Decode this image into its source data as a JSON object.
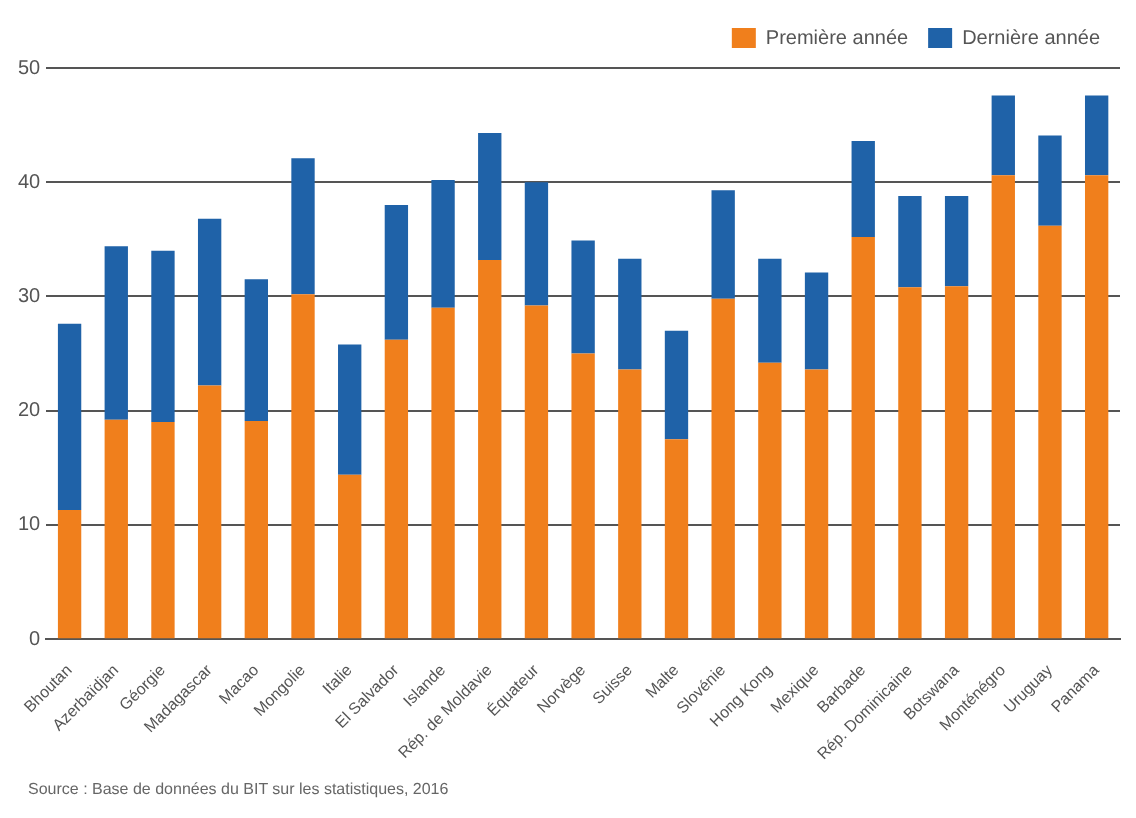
{
  "chart_data": {
    "type": "bar",
    "stacked": true,
    "categories": [
      "Bhoutan",
      "Azerbaïdjan",
      "Géorgie",
      "Madagascar",
      "Macao",
      "Mongolie",
      "Italie",
      "El Salvador",
      "Islande",
      "Rép. de Moldavie",
      "Équateur",
      "Norvège",
      "Suisse",
      "Malte",
      "Slovénie",
      "Hong Kong",
      "Mexique",
      "Barbade",
      "Rép. Dominicaine",
      "Botswana",
      "Monténégro",
      "Uruguay",
      "Panama"
    ],
    "series": [
      {
        "name": "Première année",
        "color": "#f07f1c",
        "values": [
          11.3,
          19.2,
          19,
          22.2,
          19.1,
          30.2,
          14.4,
          26.2,
          29,
          33.2,
          29.2,
          25,
          23.6,
          17.5,
          29.8,
          24.2,
          23.6,
          35.2,
          30.8,
          30.9,
          40.6,
          36.2,
          40.6
        ]
      },
      {
        "name": "Dernière année",
        "color": "#1f62a8",
        "values": [
          16.3,
          15.2,
          15,
          14.6,
          12.4,
          11.9,
          11.4,
          11.8,
          11.2,
          11.1,
          10.8,
          9.9,
          9.7,
          9.5,
          9.5,
          9.1,
          8.5,
          8.4,
          8,
          7.9,
          7,
          7.9,
          7
        ]
      }
    ],
    "ylim": [
      0,
      50
    ],
    "yticks": [
      0,
      10,
      20,
      30,
      40,
      50
    ],
    "grid": "y",
    "legend": "top right",
    "annotations": [
      "Source : Base de données du BIT sur les statistiques, 2016"
    ]
  }
}
